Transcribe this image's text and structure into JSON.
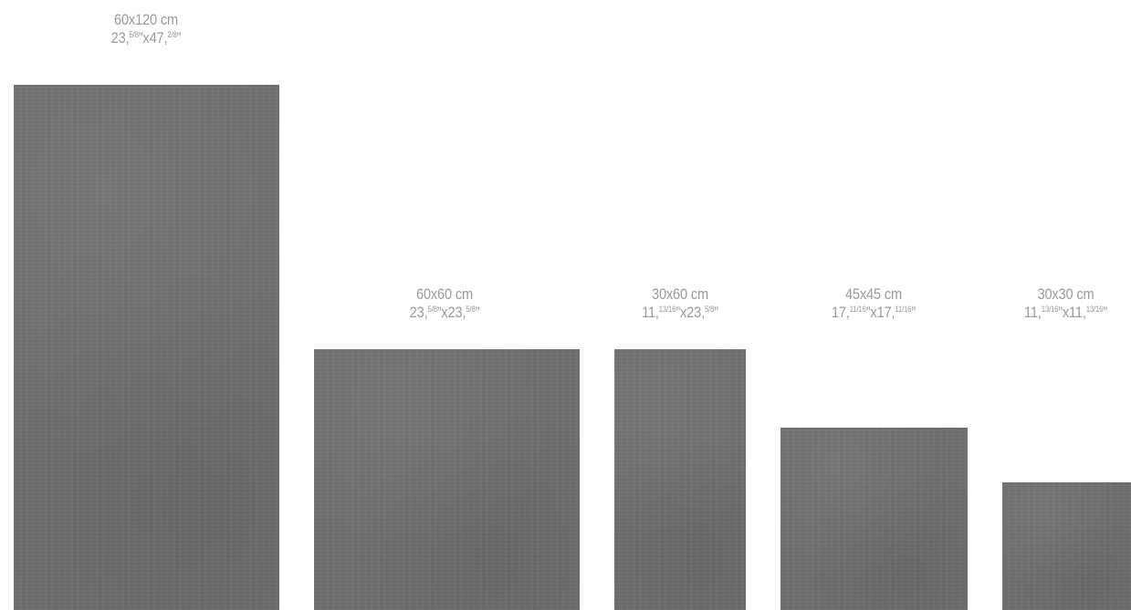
{
  "tiles": [
    {
      "cm": "60x120 cm",
      "in_a": "23,",
      "in_a_frac": "5/8",
      "in_b": "”x47,",
      "in_b_frac": "2/8",
      "in_end": "”"
    },
    {
      "cm": "60x60 cm",
      "in_a": "23,",
      "in_a_frac": "5/8",
      "in_b": "”x23,",
      "in_b_frac": "5/8",
      "in_end": "”"
    },
    {
      "cm": "30x60 cm",
      "in_a": "11,",
      "in_a_frac": "13/16",
      "in_b": "”x23,",
      "in_b_frac": "5/8",
      "in_end": "”"
    },
    {
      "cm": "45x45 cm",
      "in_a": "17,",
      "in_a_frac": "11/16",
      "in_b": "”x17,",
      "in_b_frac": "11/16",
      "in_end": "”"
    },
    {
      "cm": "30x30 cm",
      "in_a": "11,",
      "in_a_frac": "13/16",
      "in_b": "”x11,",
      "in_b_frac": "13/16",
      "in_end": "”"
    }
  ],
  "colors": {
    "tile": "#6f6f6f",
    "label": "#9a9a9a",
    "background": "#ffffff"
  }
}
